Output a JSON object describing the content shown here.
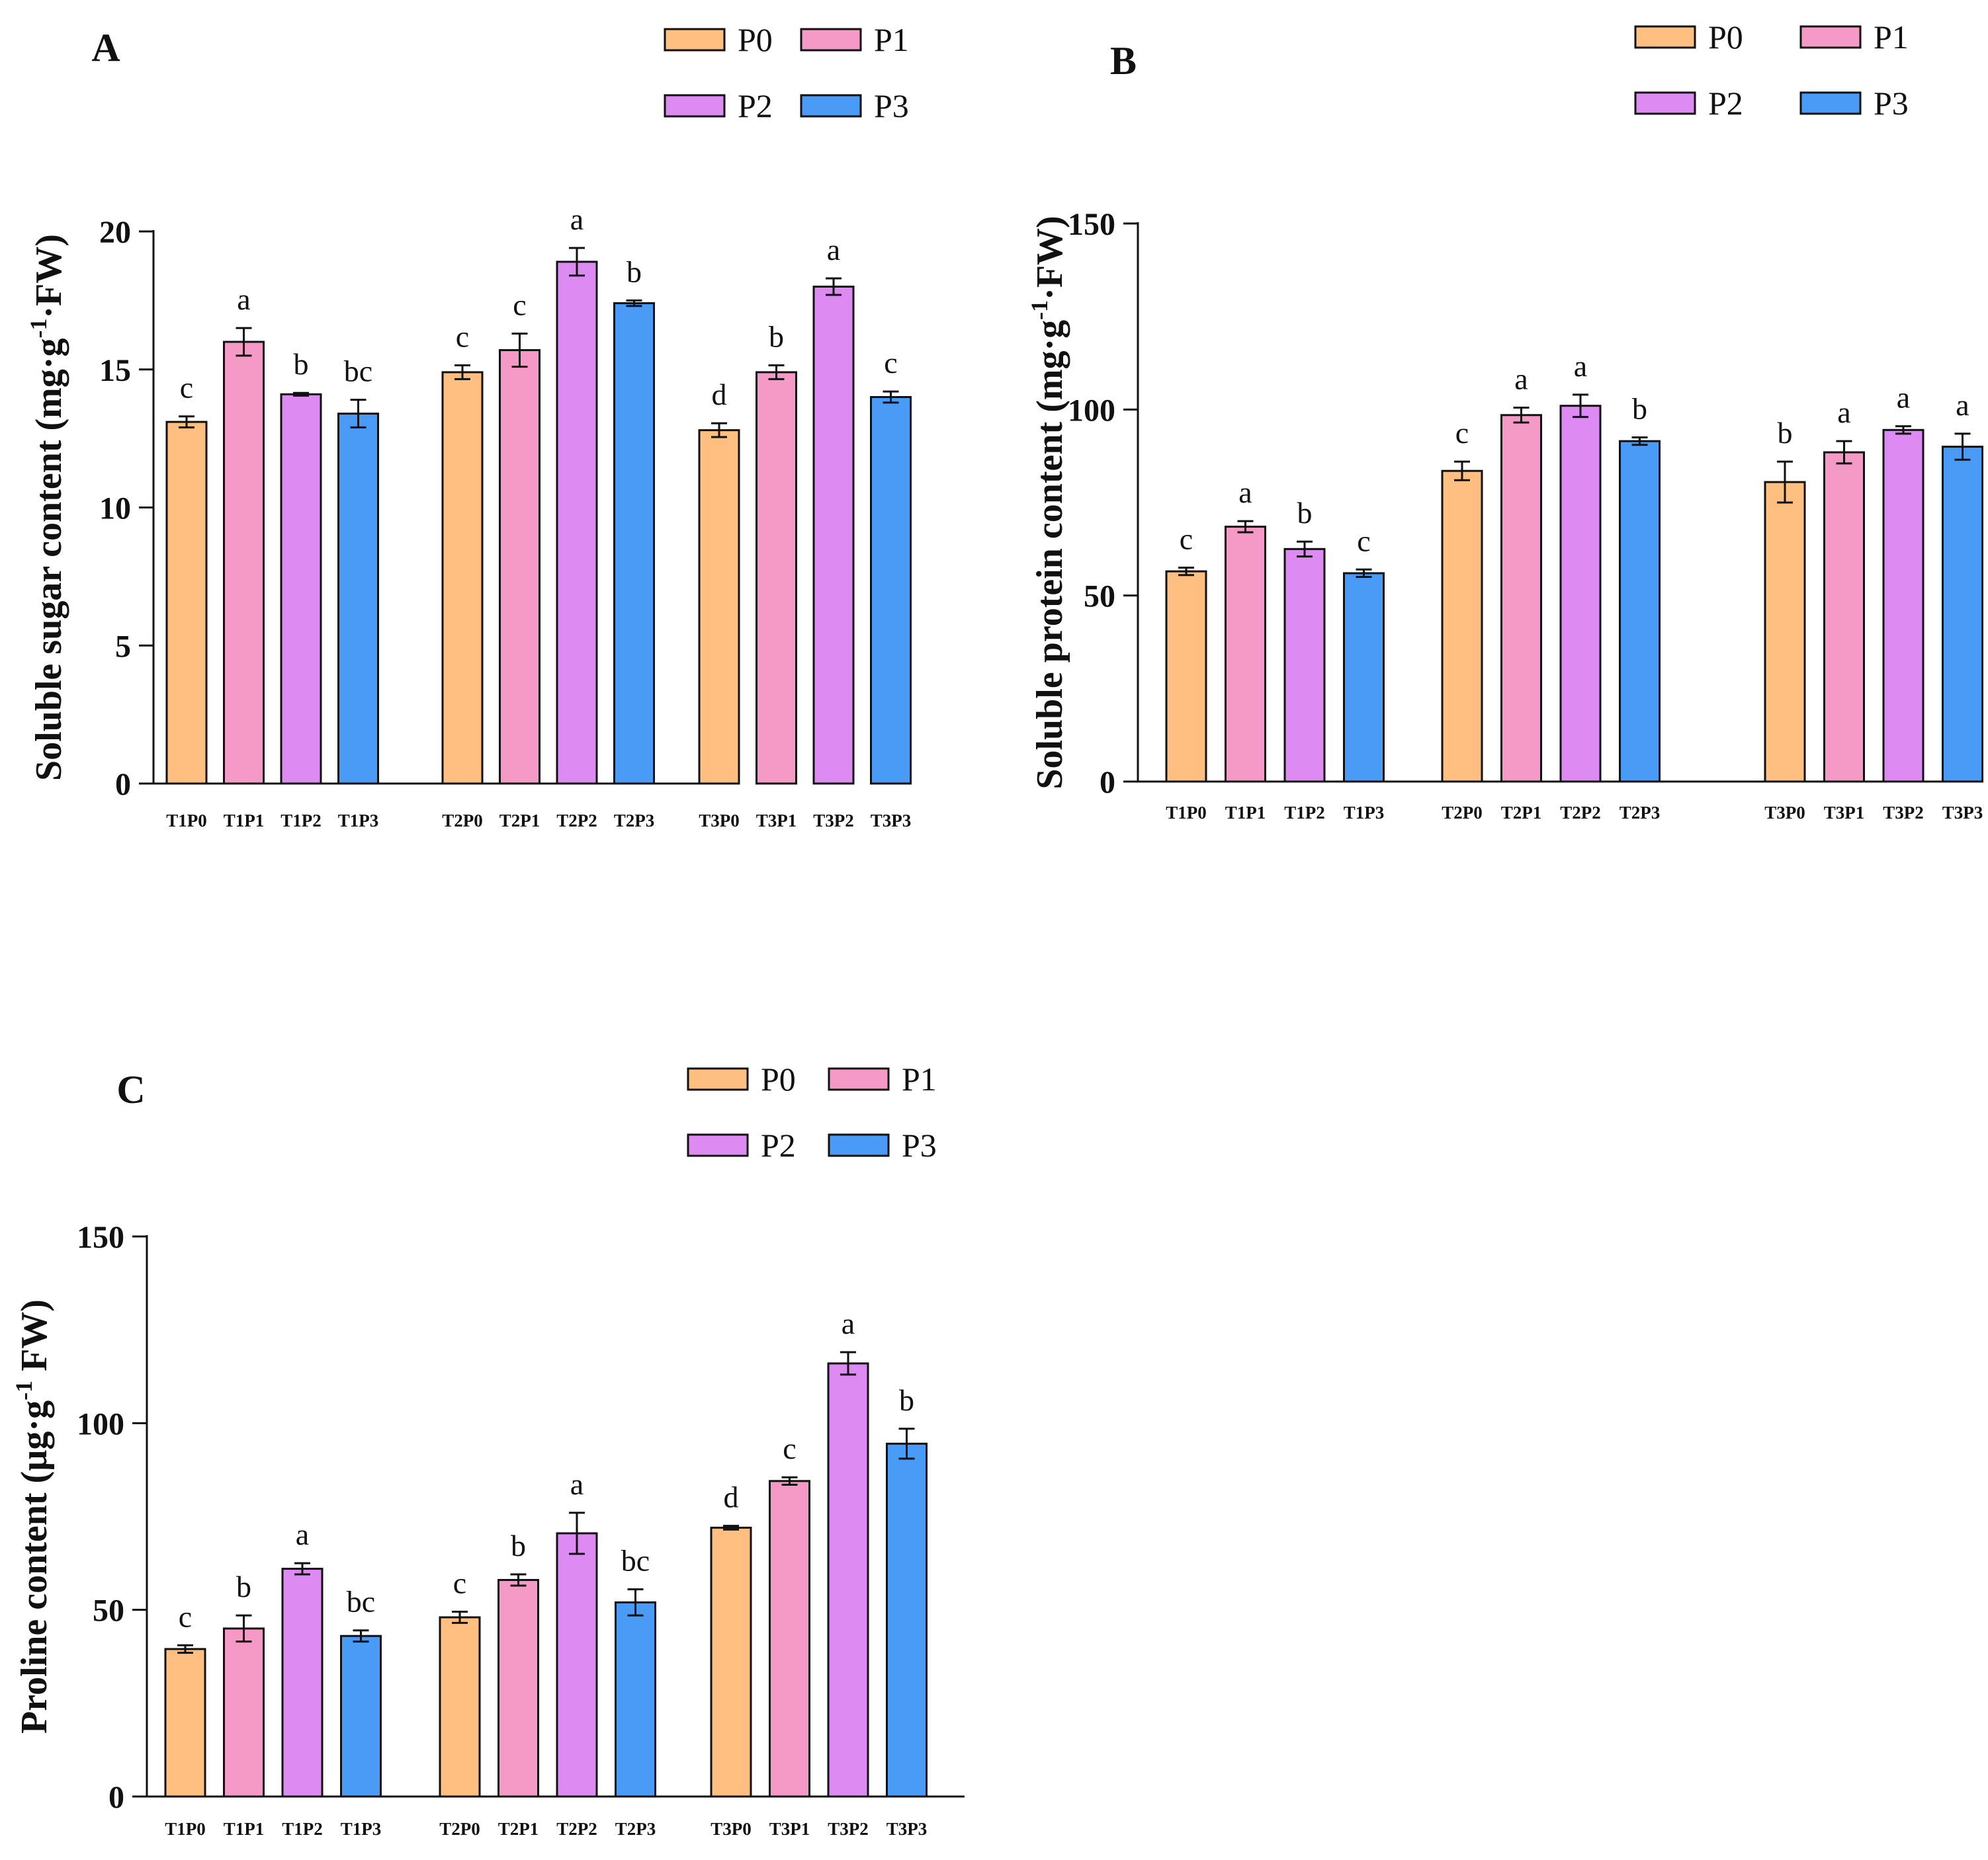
{
  "legend_colors": {
    "P0": "#FFBF80",
    "P1": "#F59AC7",
    "P2": "#DD8AF2",
    "P3": "#4A9BF5"
  },
  "chart_data": [
    {
      "type": "bar",
      "panel": "A",
      "ylabel": "Soluble sugar content (mg·g-1·FW)",
      "ylabel_parts": {
        "pre": "Soluble sugar content (mg·g",
        "sup": "-1",
        "post": "·FW)"
      },
      "ylim": [
        0,
        20
      ],
      "yticks": [
        "0",
        "5",
        "10",
        "15",
        "20"
      ],
      "legend": [
        "P0",
        "P1",
        "P2",
        "P3"
      ],
      "groups": [
        {
          "categories": [
            "T1P0",
            "T1P1",
            "T1P2",
            "T1P3"
          ],
          "values": [
            13.1,
            16.0,
            14.1,
            13.4
          ],
          "errors": [
            0.2,
            0.5,
            0.05,
            0.5
          ],
          "letters": [
            "c",
            "a",
            "b",
            "bc"
          ]
        },
        {
          "categories": [
            "T2P0",
            "T2P1",
            "T2P2",
            "T2P3"
          ],
          "values": [
            14.9,
            15.7,
            18.9,
            17.4
          ],
          "errors": [
            0.25,
            0.6,
            0.5,
            0.1
          ],
          "letters": [
            "c",
            "c",
            "a",
            "b"
          ]
        },
        {
          "categories": [
            "T3P0",
            "T3P1",
            "T3P2",
            "T3P3"
          ],
          "values": [
            12.8,
            14.9,
            18.0,
            14.0
          ],
          "errors": [
            0.25,
            0.25,
            0.3,
            0.2
          ],
          "letters": [
            "d",
            "b",
            "a",
            "c"
          ]
        }
      ]
    },
    {
      "type": "bar",
      "panel": "B",
      "ylabel": "Soluble protein content (mg·g-1·FW)",
      "ylabel_parts": {
        "pre": "Soluble protein content (mg·g",
        "sup": "-1",
        "post": "·FW)"
      },
      "ylim": [
        0,
        150
      ],
      "yticks": [
        "0",
        "50",
        "100",
        "150"
      ],
      "legend": [
        "P0",
        "P1",
        "P2",
        "P3"
      ],
      "groups": [
        {
          "categories": [
            "T1P0",
            "T1P1",
            "T1P2",
            "T1P3"
          ],
          "values": [
            56.5,
            68.5,
            62.5,
            56.0
          ],
          "errors": [
            1.0,
            1.5,
            2.0,
            1.0
          ],
          "letters": [
            "c",
            "a",
            "b",
            "c"
          ]
        },
        {
          "categories": [
            "T2P0",
            "T2P1",
            "T2P2",
            "T2P3"
          ],
          "values": [
            83.5,
            98.5,
            101.0,
            91.5
          ],
          "errors": [
            2.5,
            2.0,
            3.0,
            1.0
          ],
          "letters": [
            "c",
            "a",
            "a",
            "b"
          ]
        },
        {
          "categories": [
            "T3P0",
            "T3P1",
            "T3P2",
            "T3P3"
          ],
          "values": [
            80.5,
            88.5,
            94.5,
            90.0
          ],
          "errors": [
            5.5,
            3.0,
            1.0,
            3.5
          ],
          "letters": [
            "b",
            "a",
            "a",
            "a"
          ]
        }
      ]
    },
    {
      "type": "bar",
      "panel": "C",
      "ylabel": "Proline content (µg·g-1 FW)",
      "ylabel_parts": {
        "pre": "Proline content (µg·g",
        "sup": "-1",
        "post": " FW)"
      },
      "ylim": [
        0,
        150
      ],
      "yticks": [
        "0",
        "50",
        "100",
        "150"
      ],
      "legend": [
        "P0",
        "P1",
        "P2",
        "P3"
      ],
      "groups": [
        {
          "categories": [
            "T1P0",
            "T1P1",
            "T1P2",
            "T1P3"
          ],
          "values": [
            39.5,
            45.0,
            61.0,
            43.0
          ],
          "errors": [
            1.0,
            3.5,
            1.5,
            1.5
          ],
          "letters": [
            "c",
            "b",
            "a",
            "bc"
          ]
        },
        {
          "categories": [
            "T2P0",
            "T2P1",
            "T2P2",
            "T2P3"
          ],
          "values": [
            48.0,
            58.0,
            70.5,
            52.0
          ],
          "errors": [
            1.5,
            1.5,
            5.5,
            3.5
          ],
          "letters": [
            "c",
            "b",
            "a",
            "bc"
          ]
        },
        {
          "categories": [
            "T3P0",
            "T3P1",
            "T3P2",
            "T3P3"
          ],
          "values": [
            72.0,
            84.5,
            116.0,
            94.5
          ],
          "errors": [
            0.5,
            1.0,
            3.0,
            4.0
          ],
          "letters": [
            "d",
            "c",
            "a",
            "b"
          ]
        }
      ]
    }
  ]
}
